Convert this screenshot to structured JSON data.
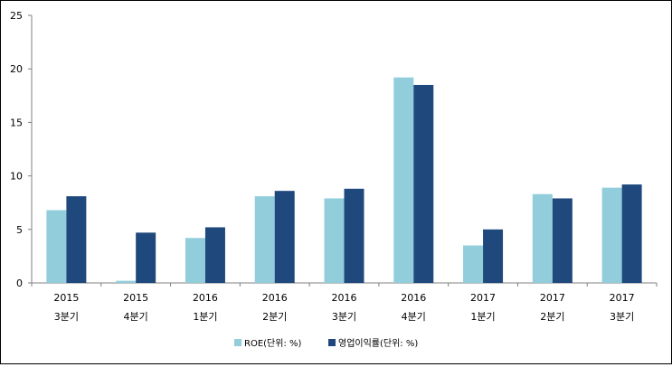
{
  "chart_data": {
    "type": "bar",
    "categories": [
      [
        "2015",
        "3분기"
      ],
      [
        "2015",
        "4분기"
      ],
      [
        "2016",
        "1분기"
      ],
      [
        "2016",
        "2분기"
      ],
      [
        "2016",
        "3분기"
      ],
      [
        "2016",
        "4분기"
      ],
      [
        "2017",
        "1분기"
      ],
      [
        "2017",
        "2분기"
      ],
      [
        "2017",
        "3분기"
      ]
    ],
    "series": [
      {
        "name": "ROE(단위: %)",
        "color": "#92CDDC",
        "values": [
          6.8,
          0.2,
          4.2,
          8.1,
          7.9,
          19.2,
          3.5,
          8.3,
          8.9
        ]
      },
      {
        "name": "영업이익률(단위: %)",
        "color": "#1F497D",
        "values": [
          8.1,
          4.7,
          5.2,
          8.6,
          8.8,
          18.5,
          5.0,
          7.9,
          9.2
        ]
      }
    ],
    "y_ticks": [
      "0",
      "5",
      "10",
      "15",
      "20",
      "25"
    ],
    "ylim": [
      0,
      25
    ],
    "grid": false,
    "legend_position": "bottom"
  }
}
